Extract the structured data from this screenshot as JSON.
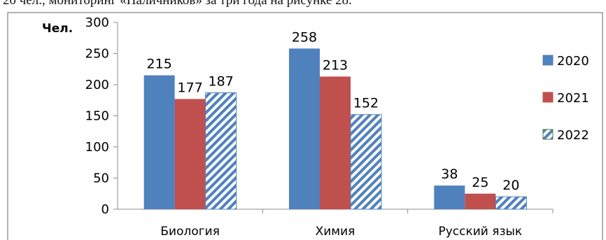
{
  "header_fragment": "20 чел., мониторинг «Наличников» за три года на рисунке 28.",
  "chart_data": {
    "type": "bar",
    "title": "",
    "xlabel": "",
    "ylabel": "Чел.",
    "ylim": [
      0,
      300
    ],
    "yticks": [
      0,
      50,
      100,
      150,
      200,
      250,
      300
    ],
    "grid": false,
    "legend_position": "right",
    "categories": [
      "Биология",
      "Химия",
      "Русский язык"
    ],
    "series": [
      {
        "name": "2020",
        "values": [
          215,
          258,
          38
        ],
        "color": "#4f81bd",
        "fill": "solid"
      },
      {
        "name": "2021",
        "values": [
          177,
          213,
          25
        ],
        "color": "#c0504d",
        "fill": "solid"
      },
      {
        "name": "2022",
        "values": [
          187,
          152,
          20
        ],
        "color": "#4f81bd",
        "fill": "diagonal-stripes"
      }
    ]
  }
}
